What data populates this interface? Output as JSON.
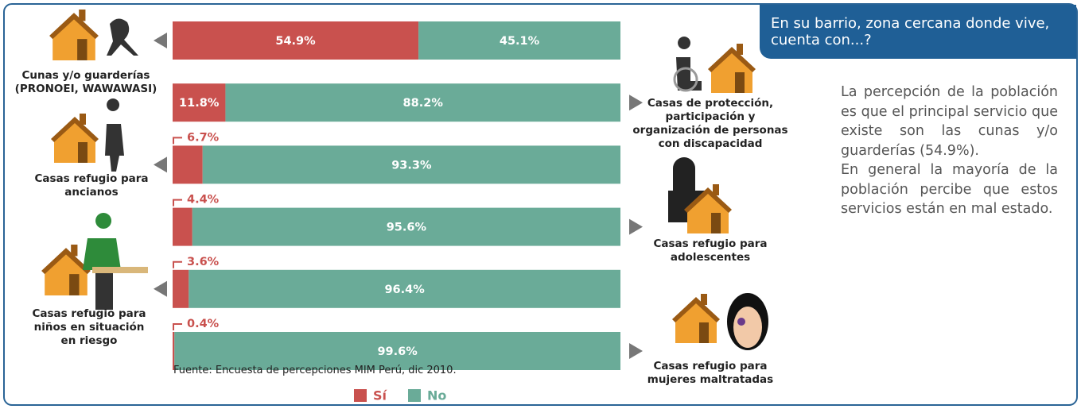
{
  "header": {
    "title": "En su barrio, zona cercana donde vive, cuenta con...?"
  },
  "chart_data": {
    "type": "bar",
    "orientation": "horizontal",
    "stacked": true,
    "categories": [
      "Cunas y/o guarderías\n(PRONOEI, WAWAWASI)",
      "Casas de protección,\nparticipación y\norganización de personas\ncon discapacidad",
      "Casas refugio para\nancianos",
      "Casas refugio para\nadolescentes",
      "Casas refugio para\nniños en situación\nen riesgo",
      "Casas refugio para\nmujeres maltratadas"
    ],
    "series": [
      {
        "name": "Sí",
        "color": "#c9514e",
        "values": [
          54.9,
          11.8,
          6.7,
          4.4,
          3.6,
          0.4
        ],
        "value_labels": [
          "54.9%",
          "11.8%",
          "6.7%",
          "4.4%",
          "3.6%",
          "0.4%"
        ]
      },
      {
        "name": "No",
        "color": "#6aab98",
        "values": [
          45.1,
          88.2,
          93.3,
          95.6,
          96.4,
          99.6
        ],
        "value_labels": [
          "45.1%",
          "88.2%",
          "93.3%",
          "95.6%",
          "96.4%",
          "99.6%"
        ]
      }
    ],
    "source": "Fuente: Encuesta de percepciones MIM Perú, dic 2010."
  },
  "commentary": {
    "paragraphs": [
      "La percepción de la población es que el principal servicio que existe son las cunas y/o guarderías (54.9%).",
      "En general la mayoría de la población percibe que estos servicios están en mal estado."
    ]
  }
}
